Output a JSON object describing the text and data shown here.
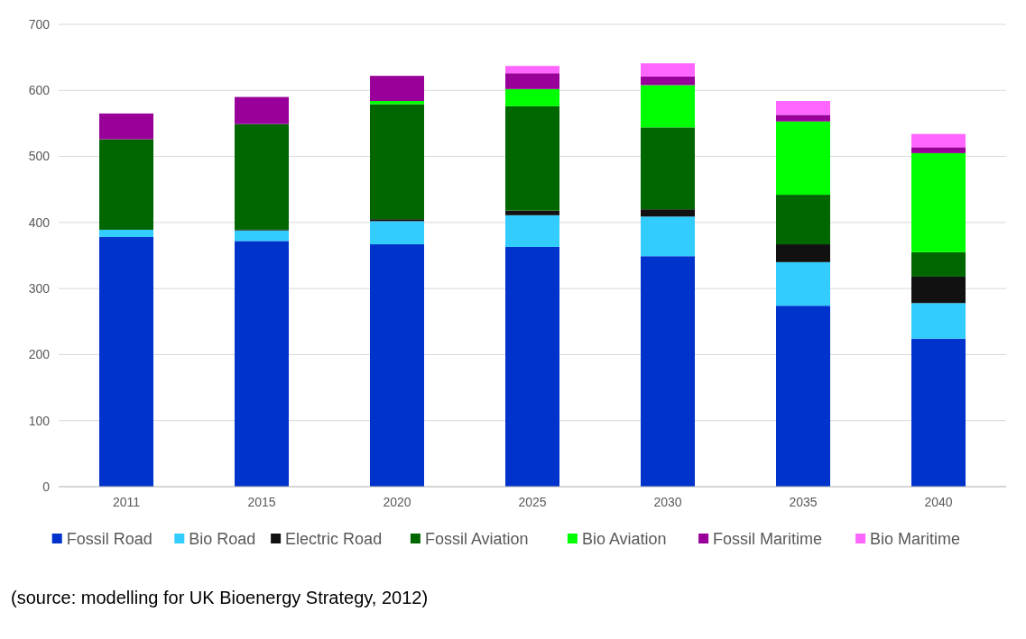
{
  "chart_data": {
    "type": "bar",
    "stacked": true,
    "categories": [
      "2011",
      "2015",
      "2020",
      "2025",
      "2030",
      "2035",
      "2040"
    ],
    "series": [
      {
        "name": "Fossil Road",
        "color": "#0033cc",
        "values": [
          378,
          372,
          367,
          363,
          349,
          274,
          224
        ]
      },
      {
        "name": "Bio Road",
        "color": "#33ccff",
        "values": [
          11,
          16,
          35,
          48,
          60,
          66,
          54
        ]
      },
      {
        "name": "Electric Road",
        "color": "#111111",
        "values": [
          0,
          1,
          3,
          7,
          11,
          27,
          40
        ]
      },
      {
        "name": "Fossil Aviation",
        "color": "#006600",
        "values": [
          137,
          160,
          174,
          158,
          124,
          75,
          37
        ]
      },
      {
        "name": "Bio Aviation",
        "color": "#00ff00",
        "values": [
          0,
          0,
          5,
          26,
          64,
          111,
          150
        ]
      },
      {
        "name": "Fossil Maritime",
        "color": "#990099",
        "values": [
          39,
          41,
          38,
          24,
          13,
          10,
          9
        ]
      },
      {
        "name": "Bio Maritime",
        "color": "#ff66ff",
        "values": [
          0,
          0,
          0,
          11,
          20,
          21,
          20
        ]
      }
    ],
    "ylim": [
      0,
      700
    ],
    "yticks": [
      0,
      100,
      200,
      300,
      400,
      500,
      600,
      700
    ],
    "grid": "y",
    "legend": "bottom",
    "annotations": [
      "(source: modelling for UK Bioenergy Strategy, 2012)"
    ]
  }
}
